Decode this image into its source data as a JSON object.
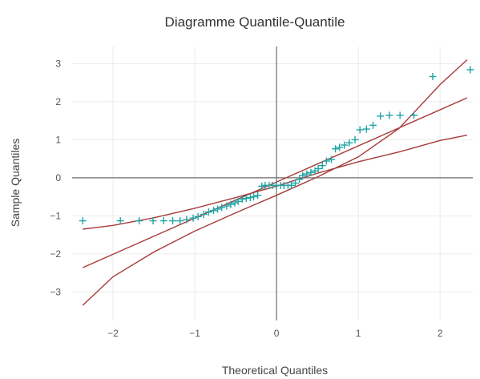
{
  "chart_data": {
    "type": "scatter",
    "title": "Diagramme Quantile-Quantile",
    "xlabel": "Theoretical Quantiles",
    "ylabel": "Sample Quantiles",
    "xlim": [
      -2.5,
      2.4
    ],
    "ylim": [
      -3.75,
      3.45
    ],
    "xticks": [
      -2,
      -1,
      0,
      1,
      2
    ],
    "yticks": [
      -3,
      -2,
      -1,
      0,
      1,
      2,
      3
    ],
    "xtick_labels": [
      "−2",
      "−1",
      "0",
      "1",
      "2"
    ],
    "ytick_labels": [
      "−3",
      "−2",
      "−1",
      "0",
      "1",
      "2",
      "3"
    ],
    "grid": true,
    "series": [
      {
        "kind": "points",
        "marker": "+",
        "color": "#20a4a4",
        "x": [
          -2.37,
          -1.91,
          -1.68,
          -1.51,
          -1.38,
          -1.27,
          -1.18,
          -1.1,
          -1.02,
          -0.96,
          -0.89,
          -0.83,
          -0.77,
          -0.72,
          -0.67,
          -0.61,
          -0.56,
          -0.51,
          -0.47,
          -0.42,
          -0.37,
          -0.32,
          -0.28,
          -0.23,
          -0.18,
          -0.14,
          -0.09,
          -0.05,
          0.0,
          0.05,
          0.09,
          0.14,
          0.18,
          0.23,
          0.28,
          0.32,
          0.37,
          0.42,
          0.47,
          0.51,
          0.56,
          0.61,
          0.67,
          0.72,
          0.77,
          0.83,
          0.89,
          0.96,
          1.02,
          1.1,
          1.18,
          1.27,
          1.38,
          1.51,
          1.68,
          1.91,
          2.37
        ],
        "y": [
          -1.13,
          -1.13,
          -1.13,
          -1.13,
          -1.13,
          -1.13,
          -1.13,
          -1.1,
          -1.06,
          -1.02,
          -0.96,
          -0.9,
          -0.86,
          -0.82,
          -0.78,
          -0.74,
          -0.7,
          -0.66,
          -0.62,
          -0.56,
          -0.54,
          -0.52,
          -0.5,
          -0.46,
          -0.22,
          -0.2,
          -0.2,
          -0.2,
          -0.2,
          -0.2,
          -0.2,
          -0.2,
          -0.2,
          -0.14,
          -0.04,
          0.06,
          0.1,
          0.14,
          0.18,
          0.24,
          0.32,
          0.44,
          0.48,
          0.76,
          0.8,
          0.86,
          0.92,
          1.0,
          1.26,
          1.28,
          1.38,
          1.62,
          1.64,
          1.64,
          1.64,
          2.66,
          2.84
        ]
      },
      {
        "kind": "line",
        "color": "#a83a3a",
        "x": [
          -2.37,
          2.33
        ],
        "y": [
          -2.36,
          2.1
        ]
      },
      {
        "kind": "line",
        "color": "#a83a3a",
        "x": [
          -2.37,
          -2.0,
          -1.5,
          -1.0,
          -0.5,
          0.0,
          0.5,
          1.0,
          1.5,
          2.0,
          2.33
        ],
        "y": [
          -1.35,
          -1.25,
          -1.05,
          -0.8,
          -0.52,
          -0.22,
          0.12,
          0.42,
          0.68,
          0.98,
          1.12
        ]
      },
      {
        "kind": "line",
        "color": "#a83a3a",
        "x": [
          -2.37,
          -2.0,
          -1.5,
          -1.0,
          -0.5,
          0.0,
          0.5,
          1.0,
          1.5,
          2.0,
          2.33
        ],
        "y": [
          -3.35,
          -2.6,
          -1.95,
          -1.4,
          -0.92,
          -0.46,
          0.02,
          0.55,
          1.3,
          2.45,
          3.1
        ]
      }
    ]
  }
}
